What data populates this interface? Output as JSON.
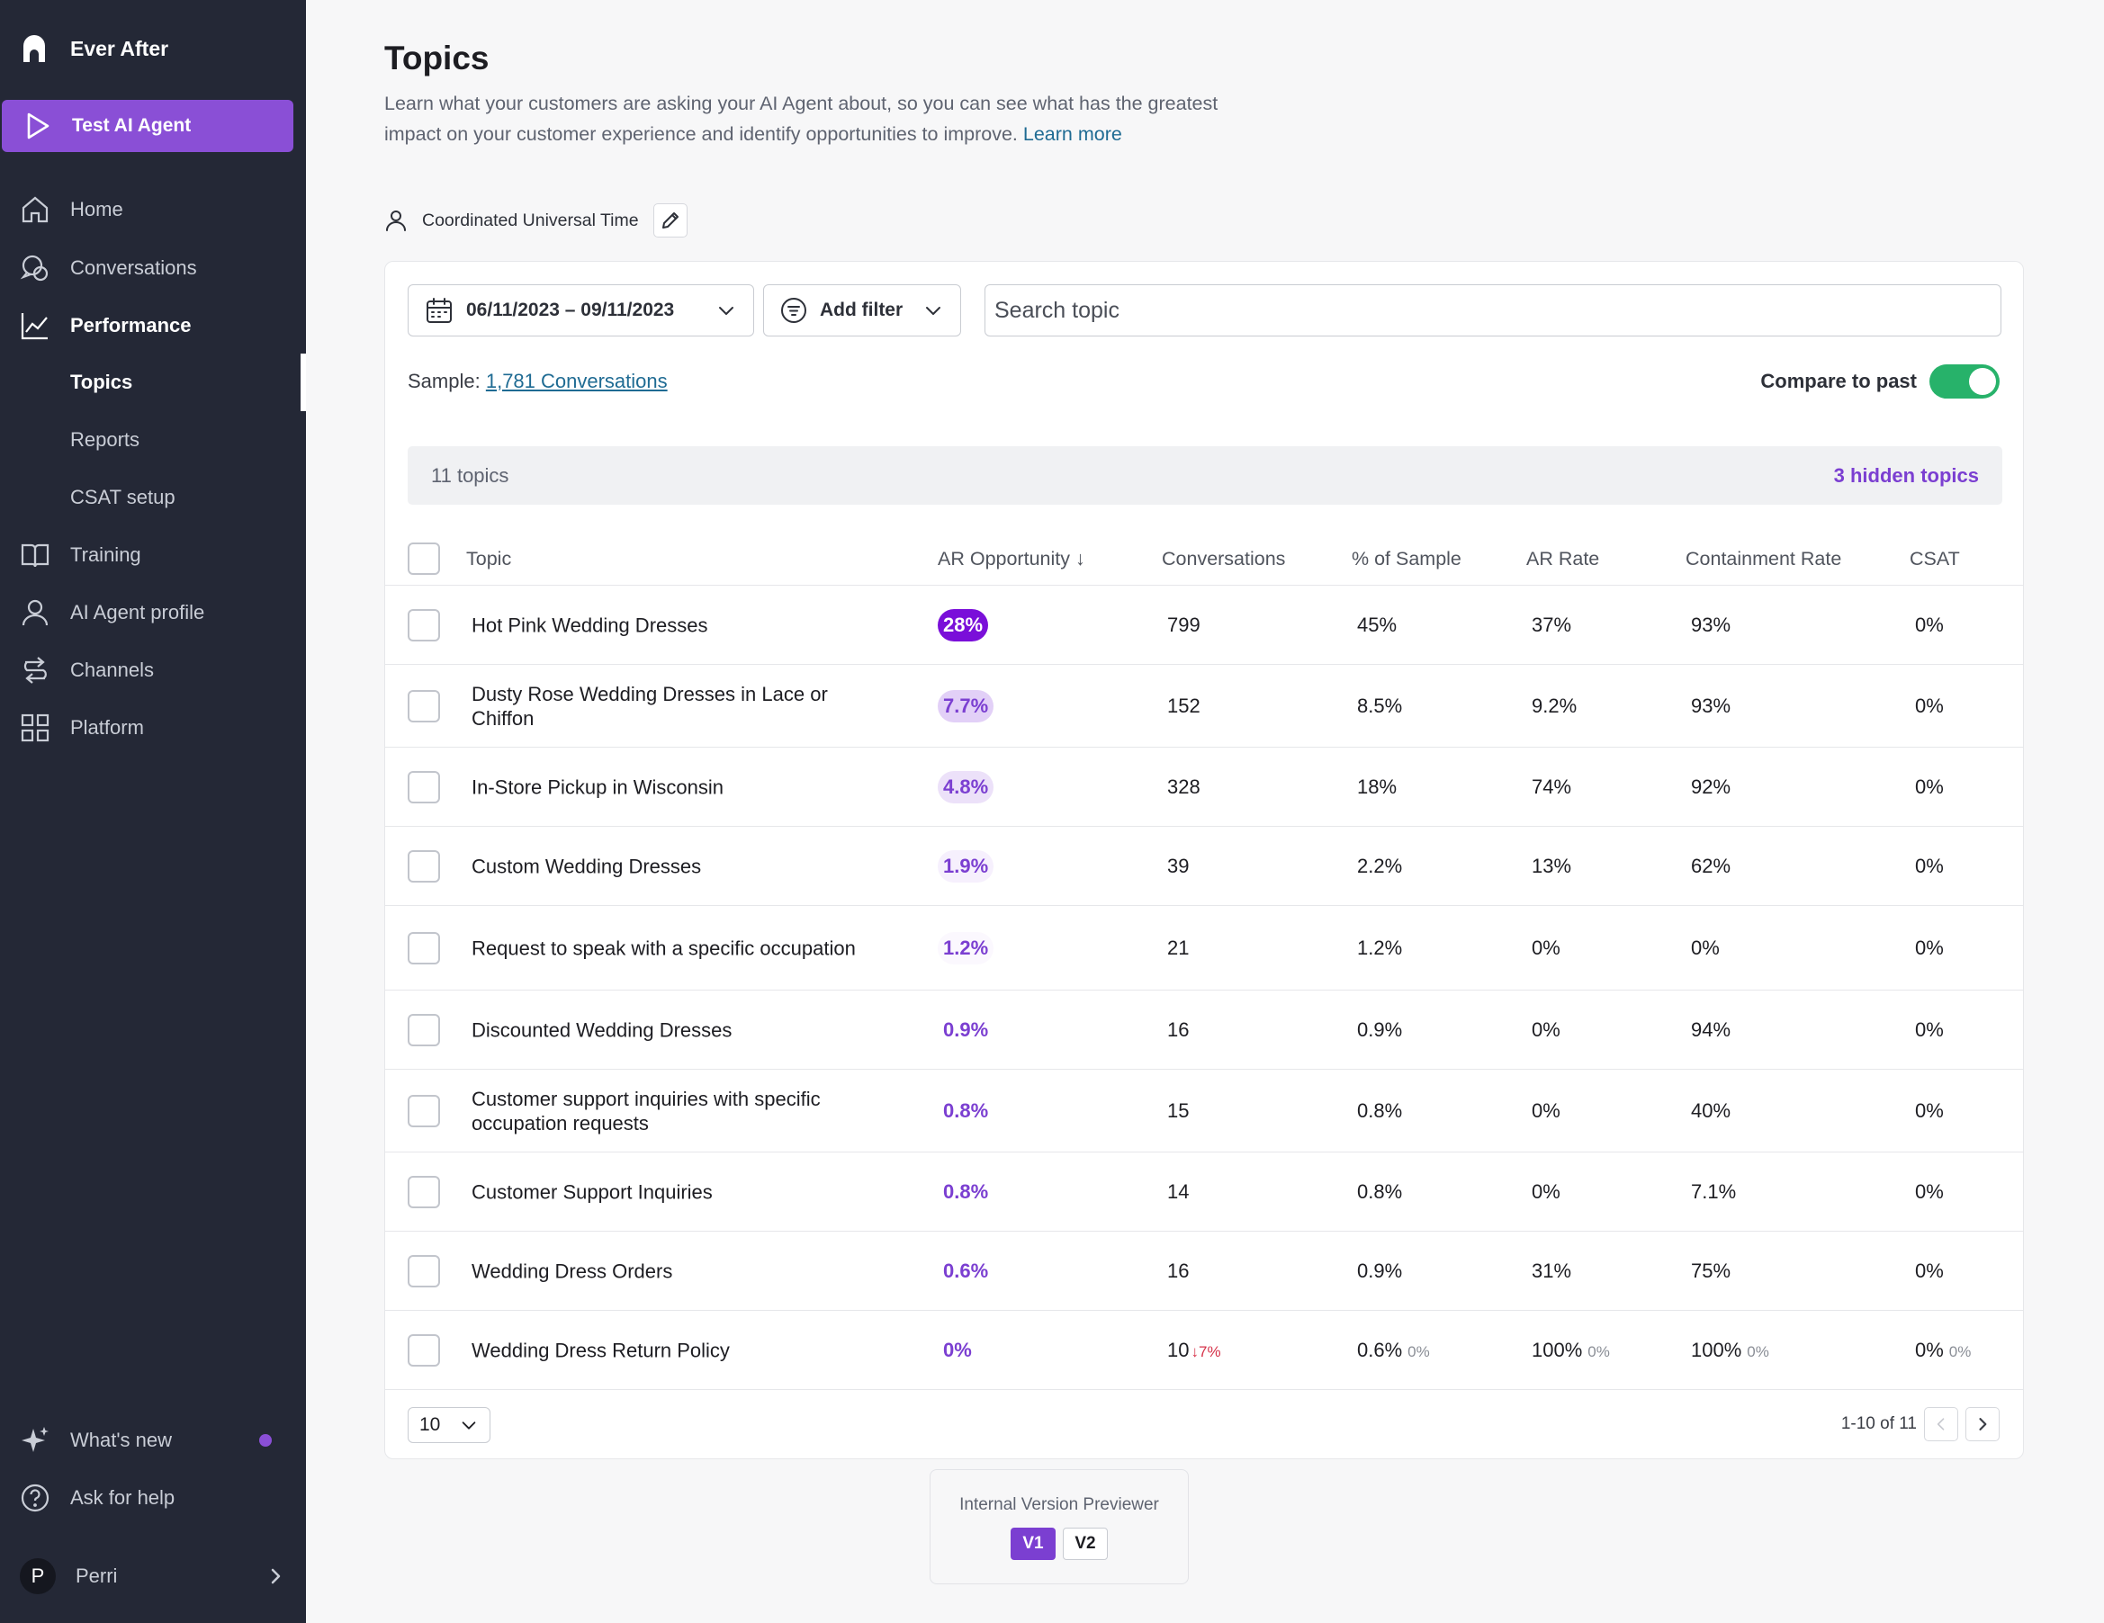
{
  "sidebar": {
    "brand": "Ever After",
    "test_button": "Test AI Agent",
    "nav": [
      {
        "label": "Home",
        "icon": "home-icon"
      },
      {
        "label": "Conversations",
        "icon": "chat-icon"
      },
      {
        "label": "Performance",
        "icon": "chart-line-icon"
      },
      {
        "label": "Training",
        "icon": "book-icon"
      },
      {
        "label": "AI Agent profile",
        "icon": "person-icon"
      },
      {
        "label": "Channels",
        "icon": "channels-icon"
      },
      {
        "label": "Platform",
        "icon": "grid-icon"
      }
    ],
    "performance_sub": [
      "Topics",
      "Reports",
      "CSAT setup"
    ],
    "whats_new": "What's new",
    "help": "Ask for help",
    "user": {
      "initial": "P",
      "name": "Perri"
    }
  },
  "page": {
    "title": "Topics",
    "description": "Learn what your customers are asking your AI Agent about, so you can see what has the greatest impact on your customer experience and identify opportunities to improve.",
    "learn_more": "Learn more",
    "timezone": "Coordinated Universal Time"
  },
  "toolbar": {
    "date_range": "06/11/2023 – 09/11/2023",
    "filter_label": "Add filter",
    "search_placeholder": "Search topic",
    "sample_label": "Sample:",
    "sample_link": "1,781 Conversations",
    "compare_label": "Compare to past",
    "compare_on": true
  },
  "summary": {
    "topic_count": "11 topics",
    "hidden_topics": "3 hidden topics"
  },
  "table": {
    "columns": [
      "Topic",
      "AR Opportunity",
      "Conversations",
      "% of Sample",
      "AR Rate",
      "Containment Rate",
      "CSAT"
    ],
    "sort_indicator": "↓",
    "rows": [
      {
        "topic": "Hot Pink Wedding Dresses",
        "ar_opp": "28%",
        "conversations": "799",
        "sample": "45%",
        "ar_rate": "37%",
        "containment": "93%",
        "csat": "0%"
      },
      {
        "topic": "Dusty Rose Wedding Dresses in Lace or Chiffon",
        "ar_opp": "7.7%",
        "conversations": "152",
        "sample": "8.5%",
        "ar_rate": "9.2%",
        "containment": "93%",
        "csat": "0%"
      },
      {
        "topic": "In-Store Pickup in Wisconsin",
        "ar_opp": "4.8%",
        "conversations": "328",
        "sample": "18%",
        "ar_rate": "74%",
        "containment": "92%",
        "csat": "0%"
      },
      {
        "topic": "Custom Wedding Dresses",
        "ar_opp": "1.9%",
        "conversations": "39",
        "sample": "2.2%",
        "ar_rate": "13%",
        "containment": "62%",
        "csat": "0%"
      },
      {
        "topic": "Request to speak with a specific occupation",
        "ar_opp": "1.2%",
        "conversations": "21",
        "sample": "1.2%",
        "ar_rate": "0%",
        "containment": "0%",
        "csat": "0%"
      },
      {
        "topic": "Discounted Wedding Dresses",
        "ar_opp": "0.9%",
        "conversations": "16",
        "sample": "0.9%",
        "ar_rate": "0%",
        "containment": "94%",
        "csat": "0%"
      },
      {
        "topic": "Customer support inquiries with specific occupation requests",
        "ar_opp": "0.8%",
        "conversations": "15",
        "sample": "0.8%",
        "ar_rate": "0%",
        "containment": "40%",
        "csat": "0%"
      },
      {
        "topic": "Customer Support Inquiries",
        "ar_opp": "0.8%",
        "conversations": "14",
        "sample": "0.8%",
        "ar_rate": "0%",
        "containment": "7.1%",
        "csat": "0%"
      },
      {
        "topic": "Wedding Dress Orders",
        "ar_opp": "0.6%",
        "conversations": "16",
        "sample": "0.9%",
        "ar_rate": "31%",
        "containment": "75%",
        "csat": "0%"
      },
      {
        "topic": "Wedding Dress Return Policy",
        "ar_opp": "0%",
        "conversations": "10",
        "conv_delta": "7%",
        "sample": "0.6%",
        "sample_prev": "0%",
        "ar_rate": "100%",
        "ar_rate_prev": "0%",
        "containment": "100%",
        "containment_prev": "0%",
        "csat": "0%",
        "csat_prev": "0%"
      }
    ]
  },
  "pagination": {
    "per_page": "10",
    "range": "1-10 of 11"
  },
  "previewer": {
    "label": "Internal Version Previewer",
    "v1": "V1",
    "v2": "V2"
  },
  "colors": {
    "sidebar_bg": "#242836",
    "accent": "#8a4fd6",
    "toggle_on": "#27b26a",
    "link": "#1f6b93",
    "negative": "#d6334a"
  }
}
